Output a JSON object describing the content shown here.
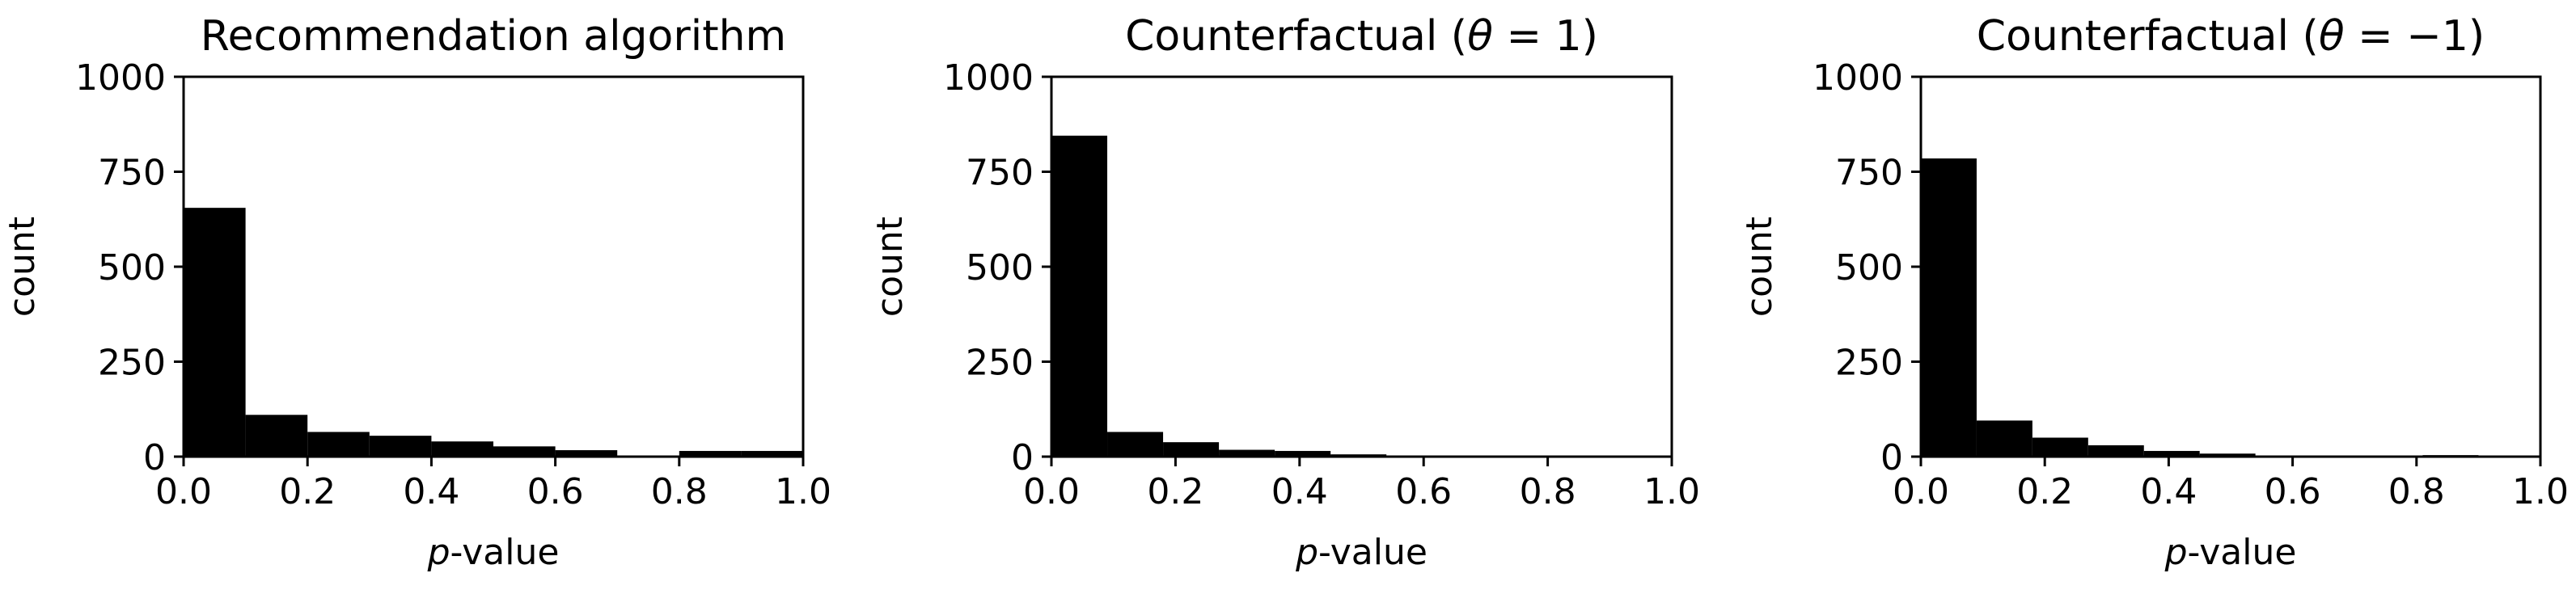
{
  "chart_data": [
    {
      "type": "bar",
      "title": "Recommendation algorithm",
      "xlabel_prefix": "p",
      "xlabel_suffix": "-value",
      "ylabel": "count",
      "xlim": [
        0.0,
        1.0
      ],
      "ylim": [
        0,
        1000
      ],
      "xticks": [
        "0.0",
        "0.2",
        "0.4",
        "0.6",
        "0.8",
        "1.0"
      ],
      "yticks": [
        "0",
        "250",
        "500",
        "750",
        "1000"
      ],
      "bin_edges": [
        0.0,
        0.1,
        0.2,
        0.3,
        0.4,
        0.5,
        0.6,
        0.7,
        0.8,
        0.9,
        1.0
      ],
      "values": [
        655,
        110,
        65,
        55,
        40,
        27,
        17,
        3,
        15,
        15
      ],
      "color": "#000000"
    },
    {
      "type": "bar",
      "title": "Counterfactual (θ = 1)",
      "title_prefix": "Counterfactual (",
      "title_var": "θ",
      "title_rest": " = 1)",
      "xlabel_prefix": "p",
      "xlabel_suffix": "-value",
      "ylabel": "count",
      "xlim": [
        0.0,
        1.0
      ],
      "ylim": [
        0,
        1000
      ],
      "xticks": [
        "0.0",
        "0.2",
        "0.4",
        "0.6",
        "0.8",
        "1.0"
      ],
      "yticks": [
        "0",
        "250",
        "500",
        "750",
        "1000"
      ],
      "bin_edges": [
        0.0,
        0.09,
        0.18,
        0.27,
        0.36,
        0.45,
        0.54,
        0.63,
        0.72,
        0.81,
        0.9,
        1.0
      ],
      "values": [
        845,
        65,
        38,
        18,
        15,
        6,
        3,
        2,
        1,
        1,
        1
      ],
      "color": "#000000"
    },
    {
      "type": "bar",
      "title": "Counterfactual (θ = −1)",
      "title_prefix": "Counterfactual (",
      "title_var": "θ",
      "title_rest": " = −1)",
      "xlabel_prefix": "p",
      "xlabel_suffix": "-value",
      "ylabel": "count",
      "xlim": [
        0.0,
        1.0
      ],
      "ylim": [
        0,
        1000
      ],
      "xticks": [
        "0.0",
        "0.2",
        "0.4",
        "0.6",
        "0.8",
        "1.0"
      ],
      "yticks": [
        "0",
        "250",
        "500",
        "750",
        "1000"
      ],
      "bin_edges": [
        0.0,
        0.09,
        0.18,
        0.27,
        0.36,
        0.45,
        0.54,
        0.63,
        0.72,
        0.81,
        0.9,
        1.0
      ],
      "values": [
        785,
        95,
        50,
        30,
        15,
        8,
        3,
        2,
        2,
        4,
        1
      ],
      "color": "#000000"
    }
  ]
}
